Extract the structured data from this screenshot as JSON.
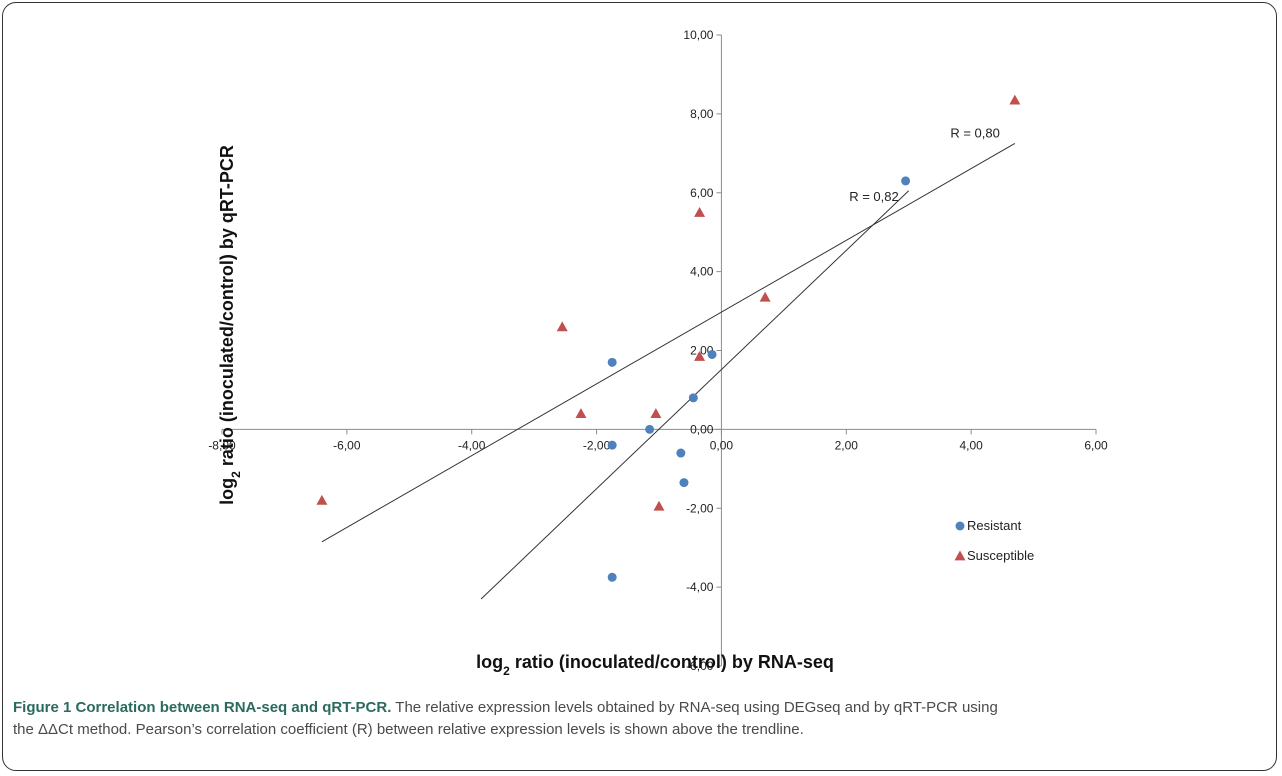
{
  "caption": {
    "title": "Figure 1 Correlation between RNA-seq and qRT-PCR.",
    "text_line1": " The relative expression levels obtained by RNA-seq using DEGseq and by qRT-PCR using",
    "text_line2": "the ΔΔCt method. Pearson’s correlation coefficient (R) between relative expression levels is shown above the trendline."
  },
  "chart_data": {
    "type": "scatter",
    "xlabel": "log₂ ratio (inoculated/control) by RNA-seq",
    "ylabel": "log₂ ratio (inoculated/control) by qRT-PCR",
    "xlim": [
      -8,
      6
    ],
    "ylim": [
      -6,
      10
    ],
    "x_ticks": [
      "-8,00",
      "-6,00",
      "-4,00",
      "-2,00",
      "0,00",
      "2,00",
      "4,00",
      "6,00"
    ],
    "y_ticks": [
      "-6,00",
      "-4,00",
      "-2,00",
      "0,00",
      "2,00",
      "4,00",
      "6,00",
      "8,00",
      "10,00"
    ],
    "legend_position": "right",
    "series": [
      {
        "name": "Resistant",
        "marker": "circle",
        "color": "#4f81bd",
        "points": [
          [
            2.95,
            6.3
          ],
          [
            -0.15,
            1.9
          ],
          [
            -1.75,
            1.7
          ],
          [
            -0.45,
            0.8
          ],
          [
            -1.15,
            0.0
          ],
          [
            -1.75,
            -0.4
          ],
          [
            -0.65,
            -0.6
          ],
          [
            -0.6,
            -1.35
          ],
          [
            -1.75,
            -3.75
          ]
        ]
      },
      {
        "name": "Susceptible",
        "marker": "triangle",
        "color": "#c0504d",
        "points": [
          [
            4.7,
            8.35
          ],
          [
            -0.35,
            5.5
          ],
          [
            0.7,
            3.35
          ],
          [
            -2.55,
            2.6
          ],
          [
            -0.35,
            1.85
          ],
          [
            -2.25,
            0.4
          ],
          [
            -1.05,
            0.4
          ],
          [
            -1.0,
            -1.95
          ],
          [
            -6.4,
            -1.8
          ]
        ]
      }
    ],
    "trendlines": [
      {
        "label": "R = 0,80",
        "from": [
          -6.4,
          -2.85
        ],
        "to": [
          4.7,
          7.25
        ]
      },
      {
        "label": "R = 0,82",
        "from": [
          -3.85,
          -4.3
        ],
        "to": [
          3.0,
          6.05
        ]
      }
    ]
  }
}
